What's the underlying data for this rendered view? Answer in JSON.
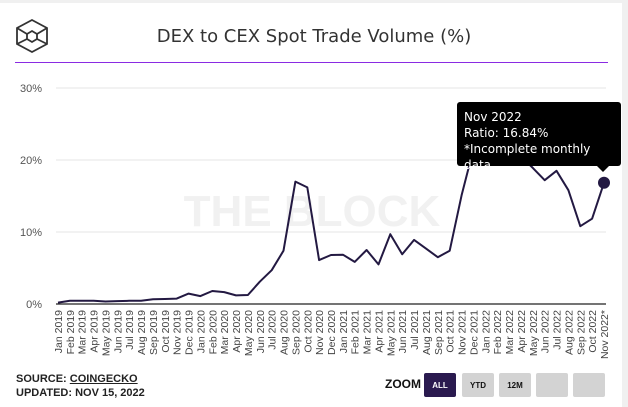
{
  "header": {
    "title": "DEX to CEX Spot Trade Volume (%)",
    "logo_icon": "cube-logo-icon",
    "accent_color": "#8a2be2"
  },
  "watermark": "THE BLOCK",
  "chart_data": {
    "type": "line",
    "title": "DEX to CEX Spot Trade Volume (%)",
    "xlabel": "",
    "ylabel": "",
    "ylim": [
      0,
      30
    ],
    "y_ticks": [
      "0%",
      "10%",
      "20%",
      "30%"
    ],
    "grid": true,
    "line_color": "#231942",
    "categories": [
      "Jan 2019",
      "Feb 2019",
      "Mar 2019",
      "Apr 2019",
      "May 2019",
      "Jun 2019",
      "Jul 2019",
      "Aug 2019",
      "Sep 2019",
      "Oct 2019",
      "Nov 2019",
      "Dec 2019",
      "Jan 2020",
      "Feb 2020",
      "Mar 2020",
      "Apr 2020",
      "May 2020",
      "Jun 2020",
      "Jul 2020",
      "Aug 2020",
      "Sep 2020",
      "Oct 2020",
      "Nov 2020",
      "Dec 2020",
      "Jan 2021",
      "Feb 2021",
      "Mar 2021",
      "Apr 2021",
      "May 2021",
      "Jun 2021",
      "Jul 2021",
      "Aug 2021",
      "Sep 2021",
      "Oct 2021",
      "Nov 2021",
      "Dec 2021",
      "Jan 2022",
      "Feb 2022",
      "Mar 2022",
      "Apr 2022",
      "May 2022",
      "Jun 2022",
      "Jul 2022",
      "Aug 2022",
      "Sep 2022",
      "Oct 2022",
      "Nov 2022*"
    ],
    "values": [
      0.2,
      0.45,
      0.45,
      0.45,
      0.35,
      0.4,
      0.45,
      0.45,
      0.65,
      0.7,
      0.75,
      1.45,
      1.1,
      1.8,
      1.65,
      1.2,
      1.25,
      3.1,
      4.7,
      7.4,
      17.0,
      16.2,
      6.1,
      6.8,
      6.85,
      5.85,
      7.5,
      5.5,
      9.7,
      6.9,
      8.9,
      7.7,
      6.5,
      7.4,
      15.1,
      21.5,
      22.5,
      21.0,
      21.5,
      20.5,
      18.9,
      17.2,
      18.5,
      15.8,
      10.8,
      11.85,
      16.84
    ],
    "highlight": {
      "category": "Nov 2022",
      "label": "Nov 2022",
      "ratio": "Ratio: 16.84%",
      "note": "*Incomplete monthly data"
    }
  },
  "footer": {
    "source_label": "SOURCE: ",
    "source_link": "COINGECKO",
    "updated": "UPDATED: NOV 15, 2022",
    "zoom_label": "ZOOM",
    "zoom_buttons": [
      "ALL",
      "YTD",
      "12M",
      "",
      ""
    ],
    "active_zoom": "ALL"
  }
}
